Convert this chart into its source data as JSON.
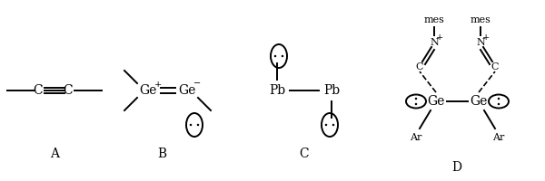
{
  "bg_color": "#ffffff",
  "fig_width": 6.0,
  "fig_height": 2.0,
  "dpi": 100,
  "label_A": "A",
  "label_B": "B",
  "label_C": "C",
  "label_D": "D",
  "fontsize_main": 10,
  "fontsize_label": 10,
  "fontsize_small": 8,
  "fontsize_charge": 7
}
